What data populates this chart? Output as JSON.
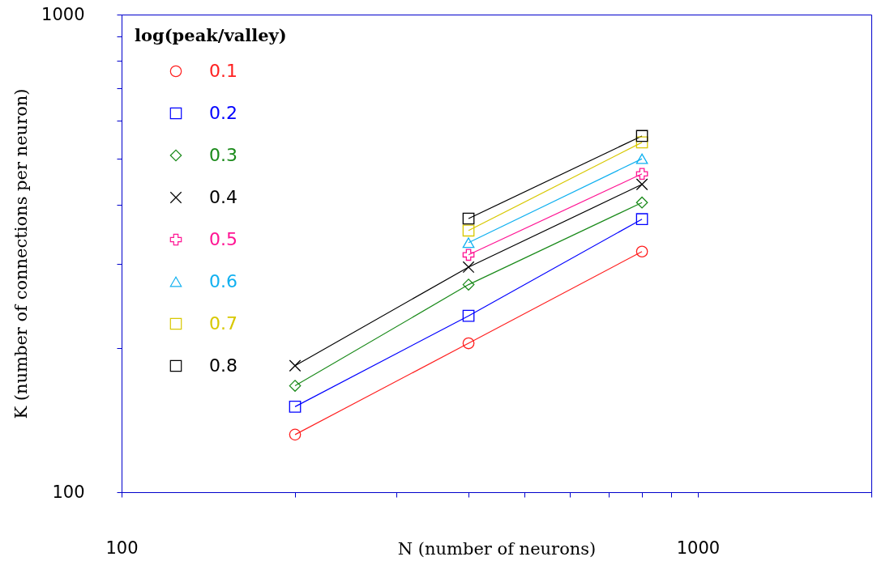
{
  "chart_data": {
    "type": "line",
    "xlabel": "N (number of neurons)",
    "ylabel": "K (number of connections per neuron)",
    "legend_title": "log(peak/valley)",
    "legend": "top left",
    "log": "xy",
    "grid": false,
    "x": [
      200,
      400,
      800
    ],
    "xlim": [
      100,
      2000
    ],
    "ylim": [
      100,
      1000
    ],
    "xticks": [
      100,
      {
        "value": 200,
        "label": null
      },
      {
        "value": 300,
        "label": null
      },
      {
        "value": 400,
        "label": null
      },
      {
        "value": 500,
        "label": null
      },
      {
        "value": 600,
        "label": null
      },
      {
        "value": 700,
        "label": null
      },
      {
        "value": 800,
        "label": null
      },
      {
        "value": 900,
        "label": null
      },
      1000,
      {
        "value": 2000,
        "label": null
      }
    ],
    "yticks": [
      100,
      {
        "value": 200,
        "label": null
      },
      {
        "value": 300,
        "label": null
      },
      {
        "value": 400,
        "label": null
      },
      {
        "value": 500,
        "label": null
      },
      {
        "value": 600,
        "label": null
      },
      {
        "value": 700,
        "label": null
      },
      {
        "value": 800,
        "label": null
      },
      {
        "value": 900,
        "label": null
      },
      1000
    ],
    "series": [
      {
        "name": "0.1",
        "color": "#ff2020",
        "marker": "circle",
        "values": [
          132,
          205,
          319
        ]
      },
      {
        "name": "0.2",
        "color": "#0000ff",
        "marker": "square",
        "values": [
          151,
          234,
          373
        ]
      },
      {
        "name": "0.3",
        "color": "#1a8a1a",
        "marker": "diamond",
        "values": [
          167,
          272,
          404
        ]
      },
      {
        "name": "0.4",
        "color": "#000000",
        "marker": "x",
        "values": [
          184,
          296,
          441
        ]
      },
      {
        "name": "0.5",
        "color": "#ff1493",
        "marker": "cross",
        "values": [
          null,
          314,
          464
        ]
      },
      {
        "name": "0.6",
        "color": "#10b0f0",
        "marker": "triangle",
        "values": [
          null,
          333,
          499
        ]
      },
      {
        "name": "0.7",
        "color": "#d8c800",
        "marker": "square",
        "values": [
          null,
          353,
          540
        ]
      },
      {
        "name": "0.8",
        "color": "#000000",
        "marker": "square",
        "values": [
          null,
          374,
          557
        ]
      }
    ]
  }
}
